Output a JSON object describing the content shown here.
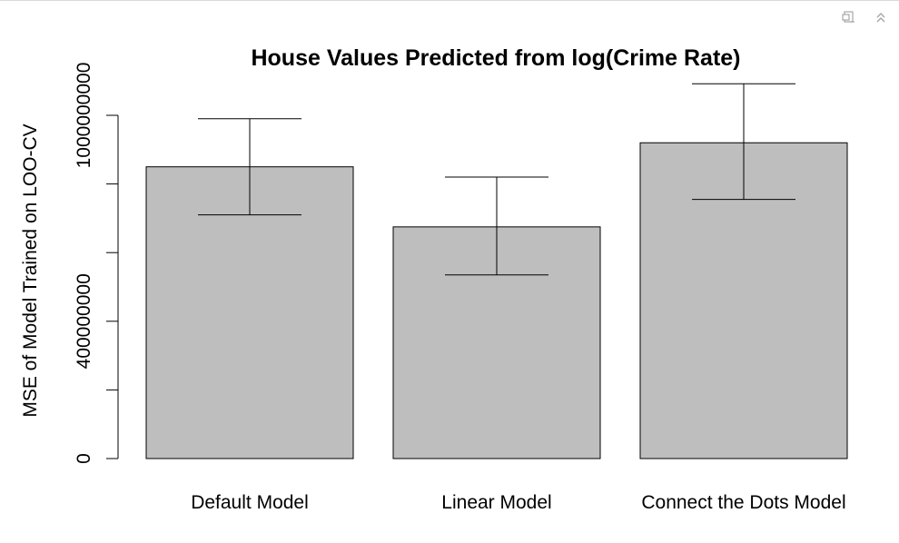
{
  "toolbar": {
    "export_icon": "export-plot-icon",
    "collapse_icon": "collapse-chevrons-icon"
  },
  "chart_data": {
    "type": "bar",
    "title": "House Values Predicted from log(Crime Rate)",
    "xlabel": "",
    "ylabel": "MSE of Model Trained on LOO-CV",
    "categories": [
      "Default Model",
      "Linear Model",
      "Connect the Dots Model"
    ],
    "values": [
      850000000,
      675000000,
      920000000
    ],
    "error_upper": [
      990000000,
      820000000,
      1092000000
    ],
    "error_lower": [
      710000000,
      535000000,
      755000000
    ],
    "ylim": [
      0,
      1100000000
    ],
    "yticks": [
      0,
      200000000,
      400000000,
      600000000,
      800000000,
      1000000000
    ],
    "ytick_labels": [
      "0",
      "",
      "400000000",
      "",
      "",
      "1000000000"
    ],
    "bar_color": "#bebebe",
    "grid": false
  }
}
